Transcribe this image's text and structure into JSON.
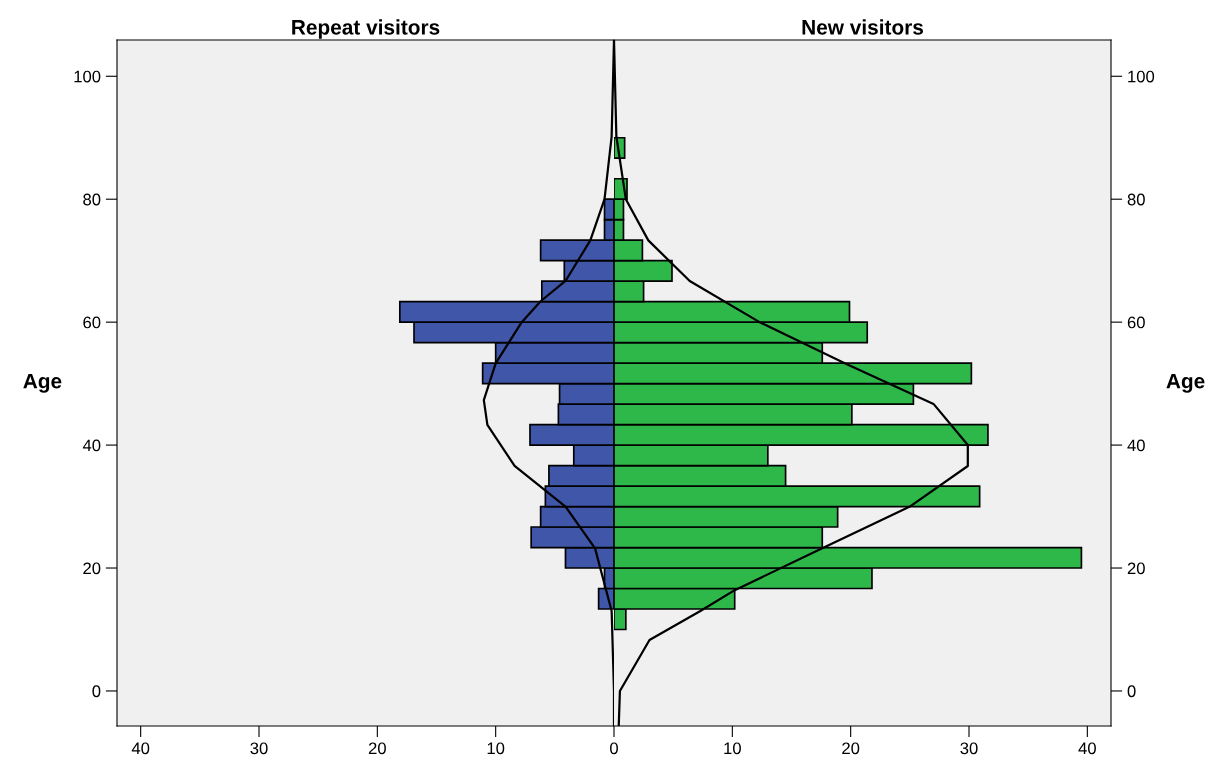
{
  "chart_data": [
    {
      "type": "histogram",
      "title": "Repeat visitors",
      "ylabel": "Age",
      "orientation": "horizontal",
      "xlim": [
        42,
        0
      ],
      "xticks": [
        40,
        30,
        20,
        10
      ],
      "ylim": [
        -5.7,
        105.9
      ],
      "yticks": [
        0,
        20,
        40,
        60,
        80,
        100
      ],
      "grid": false,
      "legend": false,
      "bins": [
        10,
        13.33,
        16.67,
        20,
        23.33,
        26.67,
        30,
        33.33,
        36.67,
        40,
        43.33,
        46.67,
        50,
        53.33,
        56.67,
        60,
        63.33,
        66.67,
        70,
        73.33,
        76.67,
        80,
        83.33,
        86.67,
        90
      ],
      "series": [
        {
          "color": "#4056a8",
          "values": [
            null,
            1.3,
            0.8,
            4.1,
            7.0,
            6.2,
            5.8,
            5.5,
            3.4,
            7.1,
            4.7,
            4.6,
            11.1,
            10.0,
            16.9,
            18.1,
            6.1,
            4.2,
            6.2,
            0.8,
            0.8,
            null,
            null,
            null
          ]
        },
        {
          "type": "line",
          "color": "#000000",
          "x": [
            -5.7,
            0,
            13,
            23.2,
            30,
            36.6,
            43.3,
            47.3,
            53.3,
            60,
            63.4,
            66.7,
            73.3,
            80,
            90.2,
            105.9
          ],
          "values": [
            0,
            0,
            0.2,
            1.6,
            4.1,
            8.4,
            10.7,
            11.0,
            10.0,
            7.8,
            6.2,
            4.1,
            2.0,
            0.8,
            0.2,
            0
          ]
        }
      ]
    },
    {
      "type": "histogram",
      "title": "New visitors",
      "ylabel": "Age",
      "orientation": "horizontal",
      "xlim": [
        0,
        42
      ],
      "xticks": [
        0,
        10,
        20,
        30,
        40
      ],
      "ylim": [
        -5.7,
        105.9
      ],
      "yticks": [
        0,
        20,
        40,
        60,
        80,
        100
      ],
      "grid": false,
      "legend": false,
      "bins": [
        10,
        13.33,
        16.67,
        20,
        23.33,
        26.67,
        30,
        33.33,
        36.67,
        40,
        43.33,
        46.67,
        50,
        53.33,
        56.67,
        60,
        63.33,
        66.67,
        70,
        73.33,
        76.67,
        80,
        83.33,
        86.67,
        90
      ],
      "series": [
        {
          "color": "#2fb84a",
          "values": [
            1.0,
            10.2,
            21.8,
            39.5,
            17.6,
            18.9,
            30.9,
            14.5,
            13.0,
            31.6,
            20.1,
            25.3,
            30.2,
            17.6,
            21.4,
            19.9,
            2.5,
            4.9,
            2.4,
            0.8,
            0.8,
            1.1,
            null,
            0.9
          ]
        },
        {
          "type": "line",
          "color": "#000000",
          "x": [
            -5.7,
            0,
            8.3,
            13,
            16.4,
            23.2,
            30,
            36.6,
            40,
            46.7,
            53.3,
            60,
            66.7,
            73.3,
            80,
            90.2,
            105.9
          ],
          "values": [
            0.4,
            0.5,
            3.0,
            7.3,
            10.2,
            17.6,
            25,
            29.9,
            29.9,
            27,
            19.5,
            12.3,
            6.4,
            2.9,
            1.0,
            0.2,
            0
          ]
        }
      ]
    }
  ]
}
